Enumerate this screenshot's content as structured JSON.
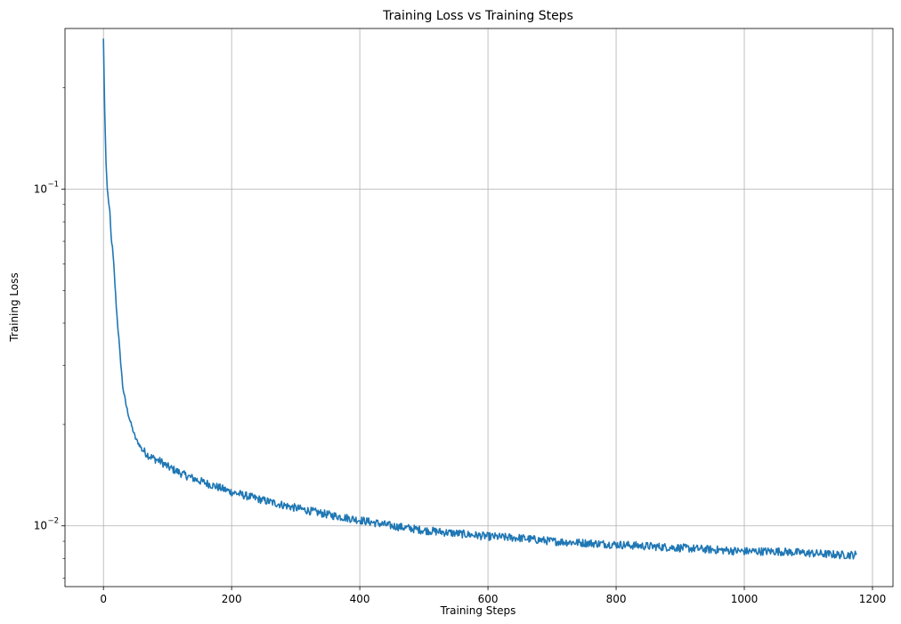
{
  "chart_data": {
    "type": "line",
    "title": "Training Loss vs Training Steps",
    "xlabel": "Training Steps",
    "ylabel": "Training Loss",
    "xlim": [
      -60,
      1232
    ],
    "ylim": [
      0.0066,
      0.3
    ],
    "yscale": "log",
    "grid": true,
    "line_color": "#1f77b4",
    "x_ticks": [
      0,
      200,
      400,
      600,
      800,
      1000,
      1200
    ],
    "x_tick_labels": [
      "0",
      "200",
      "400",
      "600",
      "800",
      "1000",
      "1200"
    ],
    "y_major_ticks": [
      0.01,
      0.1
    ],
    "y_major_tick_labels": [
      {
        "base": "10",
        "exp": "−2"
      },
      {
        "base": "10",
        "exp": "−1"
      }
    ],
    "y_minor_ticks": [
      0.007,
      0.008,
      0.009,
      0.02,
      0.03,
      0.04,
      0.05,
      0.06,
      0.07,
      0.08,
      0.09,
      0.2
    ],
    "series": [
      {
        "x": [
          0,
          2,
          4,
          6,
          8,
          10,
          12,
          14,
          16,
          18,
          20,
          22,
          24,
          26,
          28,
          30,
          35,
          40,
          45,
          50,
          60,
          70,
          80,
          90,
          100,
          125,
          150,
          175,
          200,
          250,
          300,
          350,
          400,
          450,
          500,
          550,
          600,
          650,
          700,
          750,
          800,
          850,
          900,
          950,
          1000,
          1050,
          1100,
          1150,
          1175
        ],
        "y": [
          0.28,
          0.17,
          0.12,
          0.1,
          0.092,
          0.085,
          0.072,
          0.067,
          0.06,
          0.052,
          0.045,
          0.04,
          0.036,
          0.032,
          0.029,
          0.026,
          0.023,
          0.021,
          0.0195,
          0.0182,
          0.0169,
          0.0162,
          0.0158,
          0.0155,
          0.015,
          0.0142,
          0.0136,
          0.0131,
          0.0126,
          0.0119,
          0.0113,
          0.0108,
          0.0104,
          0.01,
          0.0097,
          0.0095,
          0.0093,
          0.0092,
          0.009,
          0.0089,
          0.0088,
          0.0087,
          0.0086,
          0.0085,
          0.0084,
          0.0084,
          0.0083,
          0.0082,
          0.0082
        ]
      }
    ]
  }
}
